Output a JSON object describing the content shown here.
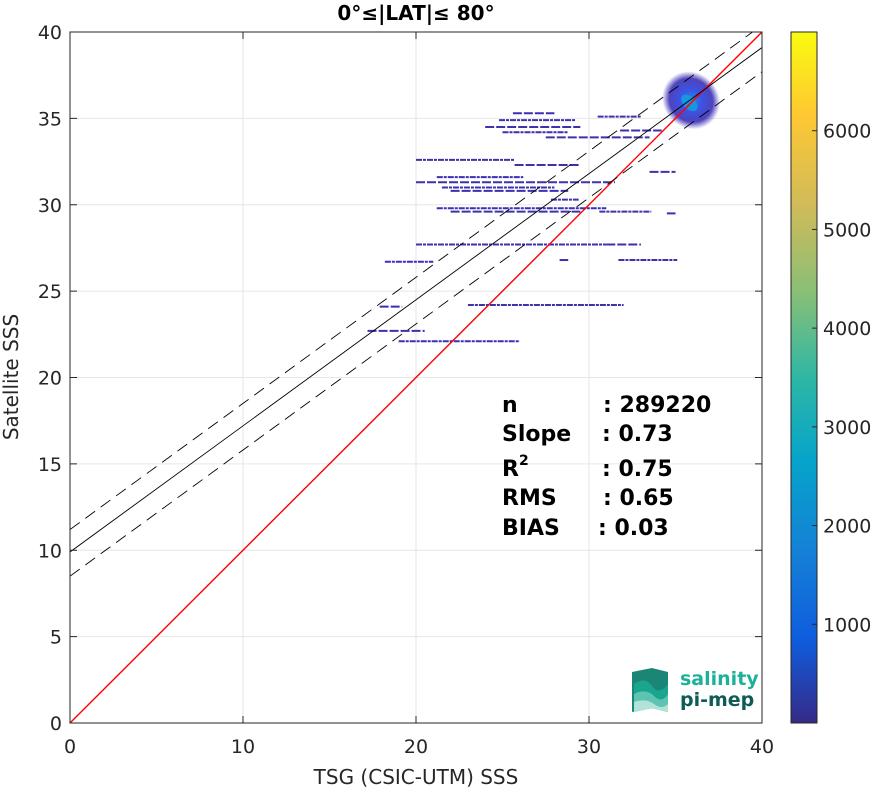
{
  "chart_data": {
    "type": "scatter",
    "title": "0°≤|LAT|≤ 80°",
    "xlabel": "TSG (CSIC-UTM) SSS",
    "ylabel": "Satellite SSS",
    "xlim": [
      0,
      40
    ],
    "ylim": [
      0,
      40
    ],
    "xticks": [
      "0",
      "10",
      "20",
      "30",
      "40"
    ],
    "yticks": [
      "0",
      "5",
      "10",
      "15",
      "20",
      "25",
      "30",
      "35",
      "40"
    ],
    "grid": true,
    "colorbar": {
      "range": [
        0,
        7000
      ],
      "ticks": [
        "1000",
        "2000",
        "3000",
        "4000",
        "5000",
        "6000"
      ],
      "colormap": "parula"
    },
    "lines": [
      {
        "role": "identity",
        "color": "#ff0000",
        "slope": 1,
        "intercept": 0
      },
      {
        "role": "regression",
        "color": "#000000",
        "slope": 0.73,
        "intercept": 9.9
      },
      {
        "role": "upper-bound",
        "color": "#000000",
        "style": "dashed",
        "slope": 0.73,
        "intercept": 11.2
      },
      {
        "role": "lower-bound",
        "color": "#000000",
        "style": "dashed",
        "slope": 0.73,
        "intercept": 8.5
      }
    ],
    "density_segments": [
      {
        "x0": 25.6,
        "x1": 28.0,
        "y": 35.3
      },
      {
        "x0": 24.8,
        "x1": 29.2,
        "y": 34.9
      },
      {
        "x0": 24.0,
        "x1": 29.5,
        "y": 34.5
      },
      {
        "x0": 25.0,
        "x1": 28.8,
        "y": 34.2
      },
      {
        "x0": 27.5,
        "x1": 33.5,
        "y": 33.9
      },
      {
        "x0": 30.5,
        "x1": 33.0,
        "y": 35.1
      },
      {
        "x0": 31.8,
        "x1": 34.2,
        "y": 34.3
      },
      {
        "x0": 20.0,
        "x1": 25.7,
        "y": 32.6
      },
      {
        "x0": 25.7,
        "x1": 29.5,
        "y": 32.3
      },
      {
        "x0": 21.2,
        "x1": 26.2,
        "y": 31.6
      },
      {
        "x0": 20.0,
        "x1": 31.5,
        "y": 31.3
      },
      {
        "x0": 21.5,
        "x1": 28.0,
        "y": 31.0
      },
      {
        "x0": 22.0,
        "x1": 28.8,
        "y": 30.8
      },
      {
        "x0": 27.8,
        "x1": 29.4,
        "y": 30.3
      },
      {
        "x0": 33.5,
        "x1": 35.0,
        "y": 31.9
      },
      {
        "x0": 21.2,
        "x1": 31.0,
        "y": 29.8
      },
      {
        "x0": 22.0,
        "x1": 29.5,
        "y": 29.6
      },
      {
        "x0": 30.6,
        "x1": 33.6,
        "y": 29.6
      },
      {
        "x0": 34.5,
        "x1": 35.0,
        "y": 29.5
      },
      {
        "x0": 20.0,
        "x1": 31.0,
        "y": 27.7
      },
      {
        "x0": 31.0,
        "x1": 33.0,
        "y": 27.7
      },
      {
        "x0": 18.2,
        "x1": 21.0,
        "y": 26.7
      },
      {
        "x0": 28.3,
        "x1": 28.8,
        "y": 26.8
      },
      {
        "x0": 31.7,
        "x1": 35.1,
        "y": 26.8
      },
      {
        "x0": 17.9,
        "x1": 19.2,
        "y": 24.1
      },
      {
        "x0": 23.0,
        "x1": 32.0,
        "y": 24.2
      },
      {
        "x0": 17.2,
        "x1": 20.5,
        "y": 22.7
      },
      {
        "x0": 19.0,
        "x1": 26.0,
        "y": 22.1
      }
    ],
    "density_cluster": {
      "x": [
        34.3,
        37.5
      ],
      "y": [
        34.3,
        37.8
      ],
      "peak": [
        35.8,
        35.9
      ]
    },
    "annotations": {
      "n_label": "n",
      "n_value": ": 289220",
      "slope_label": "Slope",
      "slope_value": ": 0.73",
      "r2_label": "R",
      "r2_sup": "2",
      "r2_value": ": 0.75",
      "rms_label": "RMS",
      "rms_value": ": 0.65",
      "bias_label": "BIAS",
      "bias_value": ": 0.03"
    },
    "logo": {
      "line1": "salinity",
      "line2": "pi-mep"
    }
  }
}
